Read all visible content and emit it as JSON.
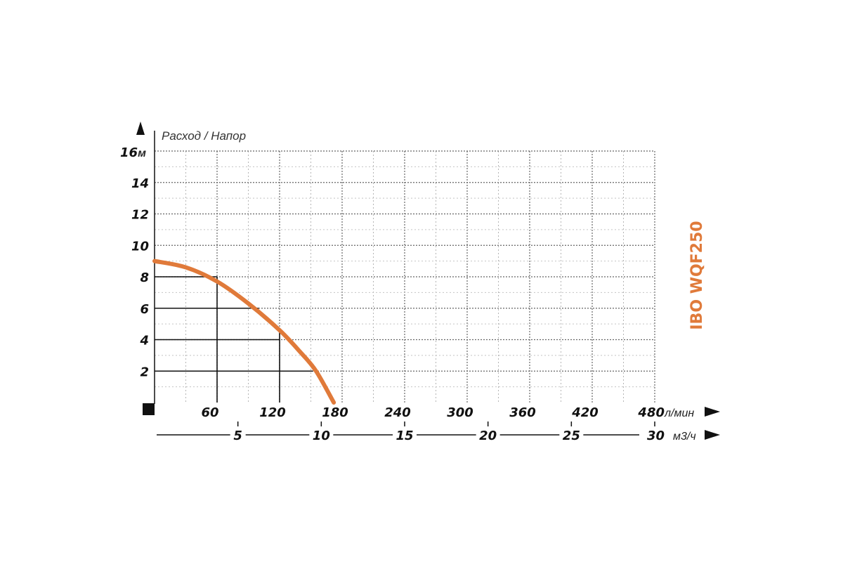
{
  "chart_data": {
    "type": "line",
    "title": "Расход / Напор",
    "model_label": "IBO WQF250",
    "y_axis": {
      "ticks": [
        "2",
        "4",
        "6",
        "8",
        "10",
        "12",
        "14",
        "16"
      ],
      "top_tick_label": "16",
      "unit": "м",
      "range": [
        0,
        16
      ]
    },
    "x_axis_primary": {
      "ticks": [
        "60",
        "120",
        "180",
        "240",
        "300",
        "360",
        "420",
        "480"
      ],
      "unit": "л/мин",
      "range": [
        0,
        480
      ]
    },
    "x_axis_secondary": {
      "ticks": [
        "5",
        "10",
        "15",
        "20",
        "25",
        "30"
      ],
      "unit": "м3/ч",
      "range": [
        0,
        30
      ]
    },
    "grid": true,
    "series": [
      {
        "color": "#e07a3a",
        "points": [
          [
            0,
            9.0
          ],
          [
            30,
            8.6
          ],
          [
            60,
            7.7
          ],
          [
            90,
            6.3
          ],
          [
            120,
            4.6
          ],
          [
            140,
            3.2
          ],
          [
            155,
            2.0
          ],
          [
            172,
            0
          ]
        ]
      }
    ],
    "reference_lines": [
      {
        "x": 60,
        "y": 8
      },
      {
        "x": 100,
        "y": 6
      },
      {
        "x": 120,
        "y": 4
      },
      {
        "x": 152,
        "y": 2
      }
    ]
  }
}
